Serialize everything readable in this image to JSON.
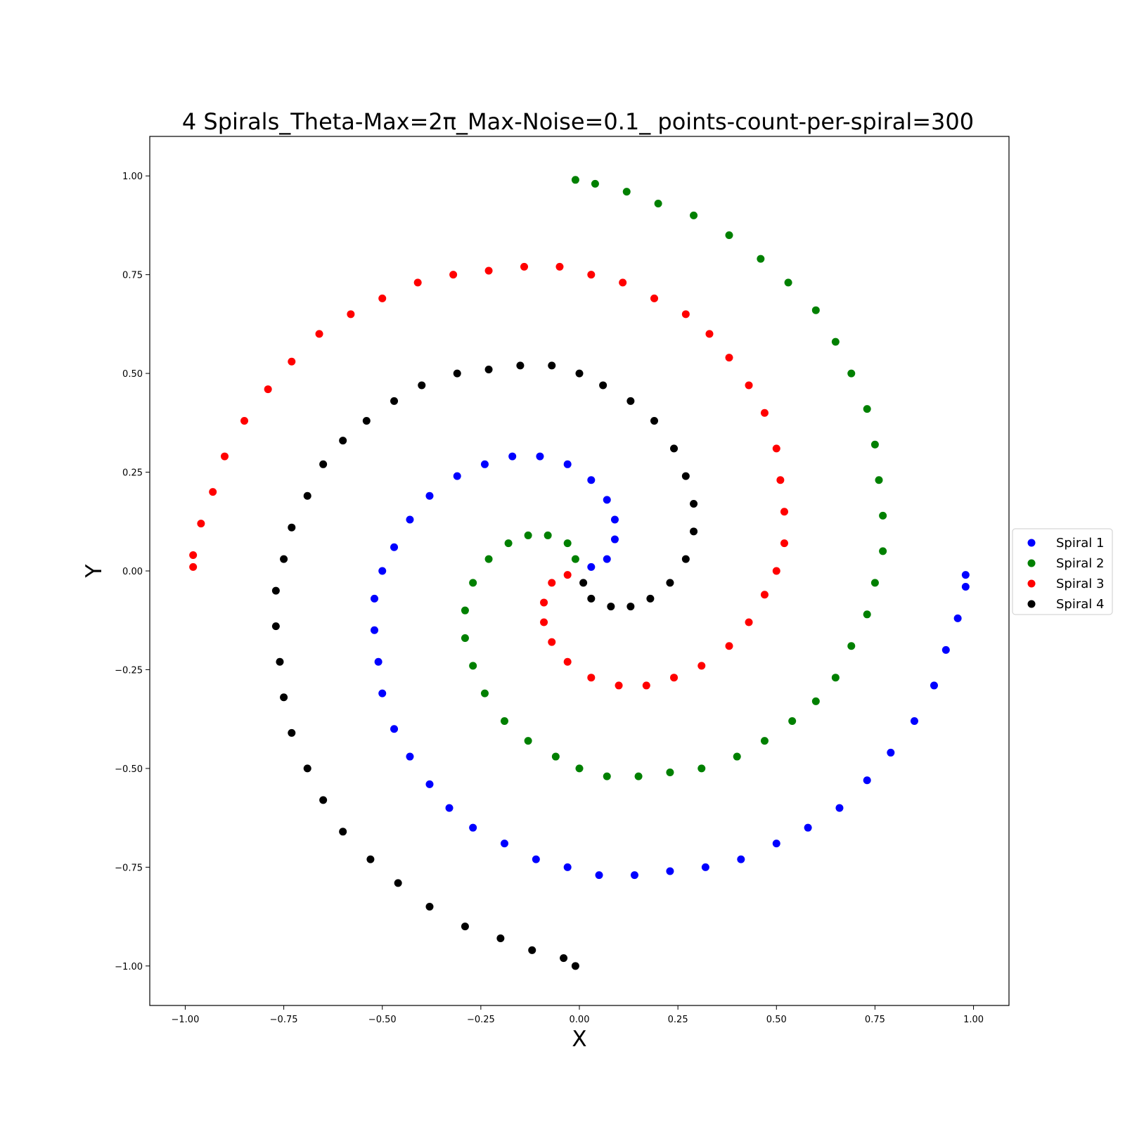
{
  "chart_data": {
    "type": "scatter",
    "title": "4 Spirals_Theta-Max=2π_Max-Noise=0.1_ points-count-per-spiral=300",
    "xlabel": "X",
    "ylabel": "Y",
    "xlim": [
      -1.09,
      1.09
    ],
    "ylim": [
      -1.1,
      1.1
    ],
    "xticks": [
      -1.0,
      -0.75,
      -0.5,
      -0.25,
      0.0,
      0.25,
      0.5,
      0.75,
      1.0
    ],
    "xtick_labels": [
      "−1.00",
      "−0.75",
      "−0.50",
      "−0.25",
      "0.00",
      "0.25",
      "0.50",
      "0.75",
      "1.00"
    ],
    "yticks": [
      1.0,
      0.75,
      0.5,
      0.25,
      0.0,
      -0.25,
      -0.5,
      -0.75,
      -1.0
    ],
    "ytick_labels": [
      "1.00",
      "0.75",
      "0.50",
      "0.25",
      "0.00",
      "−0.25",
      "−0.50",
      "−0.75",
      "−1.00"
    ],
    "grid": false,
    "legend_position": "right-center-outside",
    "series": [
      {
        "name": "Spiral 1",
        "color": "#0000ff",
        "points": [
          [
            0.03,
            0.01
          ],
          [
            0.07,
            0.03
          ],
          [
            0.09,
            0.08
          ],
          [
            0.09,
            0.13
          ],
          [
            0.07,
            0.18
          ],
          [
            0.03,
            0.23
          ],
          [
            -0.03,
            0.27
          ],
          [
            -0.1,
            0.29
          ],
          [
            -0.17,
            0.29
          ],
          [
            -0.24,
            0.27
          ],
          [
            -0.31,
            0.24
          ],
          [
            -0.38,
            0.19
          ],
          [
            -0.43,
            0.13
          ],
          [
            -0.47,
            0.06
          ],
          [
            -0.5,
            0.0
          ],
          [
            -0.52,
            -0.07
          ],
          [
            -0.52,
            -0.15
          ],
          [
            -0.51,
            -0.23
          ],
          [
            -0.5,
            -0.31
          ],
          [
            -0.47,
            -0.4
          ],
          [
            -0.43,
            -0.47
          ],
          [
            -0.38,
            -0.54
          ],
          [
            -0.33,
            -0.6
          ],
          [
            -0.27,
            -0.65
          ],
          [
            -0.19,
            -0.69
          ],
          [
            -0.11,
            -0.73
          ],
          [
            -0.03,
            -0.75
          ],
          [
            0.05,
            -0.77
          ],
          [
            0.14,
            -0.77
          ],
          [
            0.23,
            -0.76
          ],
          [
            0.32,
            -0.75
          ],
          [
            0.41,
            -0.73
          ],
          [
            0.5,
            -0.69
          ],
          [
            0.58,
            -0.65
          ],
          [
            0.66,
            -0.6
          ],
          [
            0.73,
            -0.53
          ],
          [
            0.79,
            -0.46
          ],
          [
            0.85,
            -0.38
          ],
          [
            0.9,
            -0.29
          ],
          [
            0.93,
            -0.2
          ],
          [
            0.96,
            -0.12
          ],
          [
            0.98,
            -0.04
          ],
          [
            0.98,
            -0.01
          ]
        ]
      },
      {
        "name": "Spiral 2",
        "color": "#008000",
        "points": [
          [
            -0.01,
            0.03
          ],
          [
            -0.03,
            0.07
          ],
          [
            -0.08,
            0.09
          ],
          [
            -0.13,
            0.09
          ],
          [
            -0.18,
            0.07
          ],
          [
            -0.23,
            0.03
          ],
          [
            -0.27,
            -0.03
          ],
          [
            -0.29,
            -0.1
          ],
          [
            -0.29,
            -0.17
          ],
          [
            -0.27,
            -0.24
          ],
          [
            -0.24,
            -0.31
          ],
          [
            -0.19,
            -0.38
          ],
          [
            -0.13,
            -0.43
          ],
          [
            -0.06,
            -0.47
          ],
          [
            0.0,
            -0.5
          ],
          [
            0.07,
            -0.52
          ],
          [
            0.15,
            -0.52
          ],
          [
            0.23,
            -0.51
          ],
          [
            0.31,
            -0.5
          ],
          [
            0.4,
            -0.47
          ],
          [
            0.47,
            -0.43
          ],
          [
            0.54,
            -0.38
          ],
          [
            0.6,
            -0.33
          ],
          [
            0.65,
            -0.27
          ],
          [
            0.69,
            -0.19
          ],
          [
            0.73,
            -0.11
          ],
          [
            0.75,
            -0.03
          ],
          [
            0.77,
            0.05
          ],
          [
            0.77,
            0.14
          ],
          [
            0.76,
            0.23
          ],
          [
            0.75,
            0.32
          ],
          [
            0.73,
            0.41
          ],
          [
            0.69,
            0.5
          ],
          [
            0.65,
            0.58
          ],
          [
            0.6,
            0.66
          ],
          [
            0.53,
            0.73
          ],
          [
            0.46,
            0.79
          ],
          [
            0.38,
            0.85
          ],
          [
            0.29,
            0.9
          ],
          [
            0.2,
            0.93
          ],
          [
            0.12,
            0.96
          ],
          [
            0.04,
            0.98
          ],
          [
            -0.01,
            0.99
          ]
        ]
      },
      {
        "name": "Spiral 3",
        "color": "#ff0000",
        "points": [
          [
            -0.03,
            -0.01
          ],
          [
            -0.07,
            -0.03
          ],
          [
            -0.09,
            -0.08
          ],
          [
            -0.09,
            -0.13
          ],
          [
            -0.07,
            -0.18
          ],
          [
            -0.03,
            -0.23
          ],
          [
            0.03,
            -0.27
          ],
          [
            0.1,
            -0.29
          ],
          [
            0.17,
            -0.29
          ],
          [
            0.24,
            -0.27
          ],
          [
            0.31,
            -0.24
          ],
          [
            0.38,
            -0.19
          ],
          [
            0.43,
            -0.13
          ],
          [
            0.47,
            -0.06
          ],
          [
            0.5,
            0.0
          ],
          [
            0.52,
            0.07
          ],
          [
            0.52,
            0.15
          ],
          [
            0.51,
            0.23
          ],
          [
            0.5,
            0.31
          ],
          [
            0.47,
            0.4
          ],
          [
            0.43,
            0.47
          ],
          [
            0.38,
            0.54
          ],
          [
            0.33,
            0.6
          ],
          [
            0.27,
            0.65
          ],
          [
            0.19,
            0.69
          ],
          [
            0.11,
            0.73
          ],
          [
            0.03,
            0.75
          ],
          [
            -0.05,
            0.77
          ],
          [
            -0.14,
            0.77
          ],
          [
            -0.23,
            0.76
          ],
          [
            -0.32,
            0.75
          ],
          [
            -0.41,
            0.73
          ],
          [
            -0.5,
            0.69
          ],
          [
            -0.58,
            0.65
          ],
          [
            -0.66,
            0.6
          ],
          [
            -0.73,
            0.53
          ],
          [
            -0.79,
            0.46
          ],
          [
            -0.85,
            0.38
          ],
          [
            -0.9,
            0.29
          ],
          [
            -0.93,
            0.2
          ],
          [
            -0.96,
            0.12
          ],
          [
            -0.98,
            0.04
          ],
          [
            -0.98,
            0.01
          ]
        ]
      },
      {
        "name": "Spiral 4",
        "color": "#000000",
        "points": [
          [
            0.01,
            -0.03
          ],
          [
            0.03,
            -0.07
          ],
          [
            0.08,
            -0.09
          ],
          [
            0.13,
            -0.09
          ],
          [
            0.18,
            -0.07
          ],
          [
            0.23,
            -0.03
          ],
          [
            0.27,
            0.03
          ],
          [
            0.29,
            0.1
          ],
          [
            0.29,
            0.17
          ],
          [
            0.27,
            0.24
          ],
          [
            0.24,
            0.31
          ],
          [
            0.19,
            0.38
          ],
          [
            0.13,
            0.43
          ],
          [
            0.06,
            0.47
          ],
          [
            0.0,
            0.5
          ],
          [
            -0.07,
            0.52
          ],
          [
            -0.15,
            0.52
          ],
          [
            -0.23,
            0.51
          ],
          [
            -0.31,
            0.5
          ],
          [
            -0.4,
            0.47
          ],
          [
            -0.47,
            0.43
          ],
          [
            -0.54,
            0.38
          ],
          [
            -0.6,
            0.33
          ],
          [
            -0.65,
            0.27
          ],
          [
            -0.69,
            0.19
          ],
          [
            -0.73,
            0.11
          ],
          [
            -0.75,
            0.03
          ],
          [
            -0.77,
            -0.05
          ],
          [
            -0.77,
            -0.14
          ],
          [
            -0.76,
            -0.23
          ],
          [
            -0.75,
            -0.32
          ],
          [
            -0.73,
            -0.41
          ],
          [
            -0.69,
            -0.5
          ],
          [
            -0.65,
            -0.58
          ],
          [
            -0.6,
            -0.66
          ],
          [
            -0.53,
            -0.73
          ],
          [
            -0.46,
            -0.79
          ],
          [
            -0.38,
            -0.85
          ],
          [
            -0.29,
            -0.9
          ],
          [
            -0.2,
            -0.93
          ],
          [
            -0.12,
            -0.96
          ],
          [
            -0.04,
            -0.98
          ],
          [
            -0.01,
            -1.0
          ]
        ]
      }
    ]
  }
}
